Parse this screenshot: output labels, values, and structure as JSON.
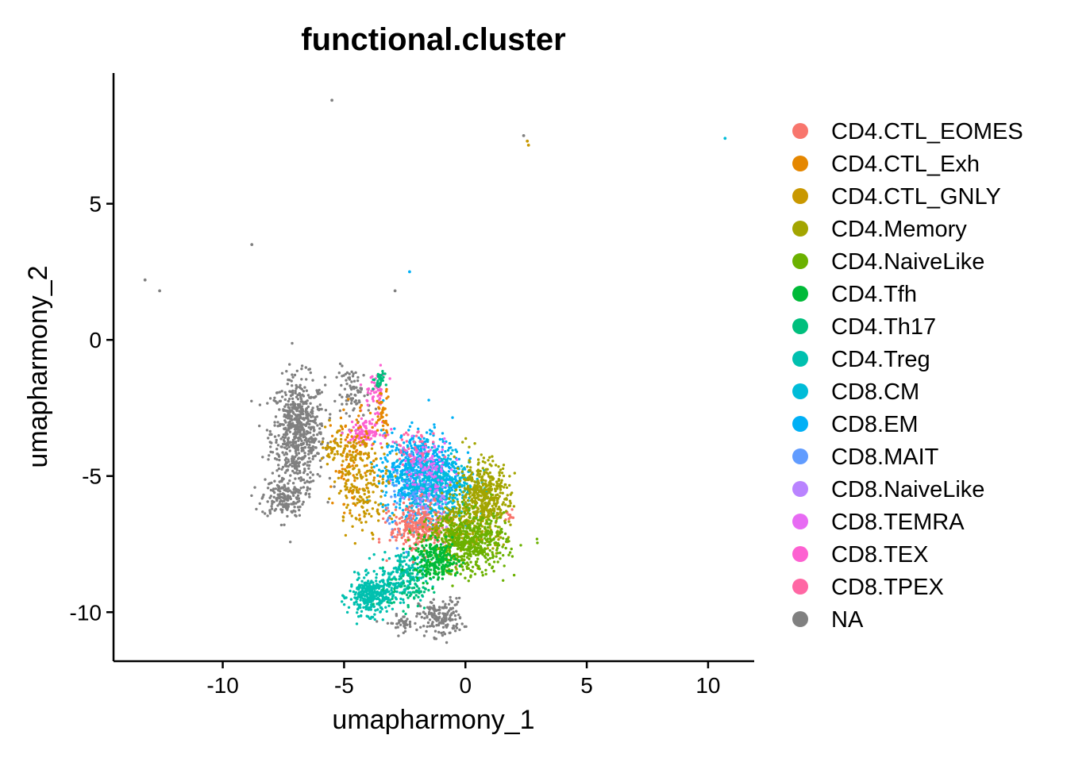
{
  "chart_data": {
    "type": "scatter",
    "title": "functional.cluster",
    "xlabel": "umapharmony_1",
    "ylabel": "umapharmony_2",
    "xlim": [
      -14.5,
      11.9
    ],
    "ylim": [
      -11.8,
      9.8
    ],
    "x_ticks": [
      -10,
      -5,
      0,
      5,
      10
    ],
    "y_ticks": [
      -10,
      -5,
      0,
      5
    ],
    "x_tick_labels": [
      "-10",
      "-5",
      "0",
      "5",
      "10"
    ],
    "y_tick_labels": [
      "-10",
      "-5",
      "0",
      "5"
    ],
    "legend_position": "right",
    "series": [
      {
        "name": "CD4.CTL_EOMES",
        "color": "#F8766D"
      },
      {
        "name": "CD4.CTL_Exh",
        "color": "#E58700"
      },
      {
        "name": "CD4.CTL_GNLY",
        "color": "#C99800"
      },
      {
        "name": "CD4.Memory",
        "color": "#A3A500"
      },
      {
        "name": "CD4.NaiveLike",
        "color": "#6BB100"
      },
      {
        "name": "CD4.Tfh",
        "color": "#00BA38"
      },
      {
        "name": "CD4.Th17",
        "color": "#00BF7D"
      },
      {
        "name": "CD4.Treg",
        "color": "#00C0AF"
      },
      {
        "name": "CD8.CM",
        "color": "#00BCD8"
      },
      {
        "name": "CD8.EM",
        "color": "#00B0F6"
      },
      {
        "name": "CD8.MAIT",
        "color": "#619CFF"
      },
      {
        "name": "CD8.NaiveLike",
        "color": "#B983FF"
      },
      {
        "name": "CD8.TEMRA",
        "color": "#E76BF3"
      },
      {
        "name": "CD8.TEX",
        "color": "#FD61D1"
      },
      {
        "name": "CD8.TPEX",
        "color": "#FF67A4"
      },
      {
        "name": "NA",
        "color": "#808080"
      }
    ],
    "regions": [
      {
        "series": "NA",
        "cx": -6.9,
        "cy": -3.4,
        "sx": 0.55,
        "sy": 1.0,
        "n": 650
      },
      {
        "series": "NA",
        "cx": -7.5,
        "cy": -5.8,
        "sx": 0.45,
        "sy": 0.35,
        "n": 160
      },
      {
        "series": "NA",
        "cx": -1.0,
        "cy": -10.2,
        "sx": 0.45,
        "sy": 0.35,
        "n": 160
      },
      {
        "series": "NA",
        "cx": -2.6,
        "cy": -10.4,
        "sx": 0.35,
        "sy": 0.15,
        "n": 40
      },
      {
        "series": "NA",
        "cx": -4.6,
        "cy": -2.0,
        "sx": 0.35,
        "sy": 0.5,
        "n": 80
      },
      {
        "series": "CD4.Treg",
        "cx": -3.9,
        "cy": -9.4,
        "sx": 0.45,
        "sy": 0.35,
        "n": 320
      },
      {
        "series": "CD4.Treg",
        "cx": -2.6,
        "cy": -8.6,
        "sx": 0.45,
        "sy": 0.45,
        "n": 180
      },
      {
        "series": "CD4.Th17",
        "cx": -2.3,
        "cy": -9.1,
        "sx": 0.45,
        "sy": 0.4,
        "n": 70
      },
      {
        "series": "CD8.EM",
        "cx": -1.8,
        "cy": -4.9,
        "sx": 0.8,
        "sy": 0.75,
        "n": 800
      },
      {
        "series": "CD8.CM",
        "cx": -1.2,
        "cy": -5.4,
        "sx": 0.8,
        "sy": 0.7,
        "n": 320
      },
      {
        "series": "CD8.MAIT",
        "cx": -2.0,
        "cy": -6.0,
        "sx": 0.6,
        "sy": 0.7,
        "n": 70
      },
      {
        "series": "CD8.NaiveLike",
        "cx": -1.5,
        "cy": -6.3,
        "sx": 0.6,
        "sy": 0.6,
        "n": 60
      },
      {
        "series": "CD8.TEMRA",
        "cx": -1.6,
        "cy": -4.6,
        "sx": 0.55,
        "sy": 0.5,
        "n": 90
      },
      {
        "series": "CD8.TEX",
        "cx": -4.1,
        "cy": -3.4,
        "sx": 0.35,
        "sy": 0.2,
        "n": 110
      },
      {
        "series": "CD8.TEX",
        "cx": -3.7,
        "cy": -1.9,
        "sx": 0.25,
        "sy": 0.35,
        "n": 50
      },
      {
        "series": "CD8.TPEX",
        "cx": -2.2,
        "cy": -4.0,
        "sx": 0.5,
        "sy": 0.4,
        "n": 40
      },
      {
        "series": "CD4.CTL_EOMES",
        "cx": -1.9,
        "cy": -6.9,
        "sx": 0.6,
        "sy": 0.45,
        "n": 280
      },
      {
        "series": "CD4.CTL_EOMES",
        "cx": 1.8,
        "cy": -6.5,
        "sx": 0.1,
        "sy": 0.15,
        "n": 10
      },
      {
        "series": "CD4.CTL_Exh",
        "cx": -4.6,
        "cy": -4.4,
        "sx": 0.45,
        "sy": 0.9,
        "n": 120
      },
      {
        "series": "CD4.CTL_Exh",
        "cx": -3.4,
        "cy": -2.6,
        "sx": 0.15,
        "sy": 0.4,
        "n": 40
      },
      {
        "series": "CD4.CTL_GNLY",
        "cx": -4.2,
        "cy": -5.3,
        "sx": 0.55,
        "sy": 0.8,
        "n": 180
      },
      {
        "series": "CD4.CTL_GNLY",
        "cx": -5.3,
        "cy": -3.9,
        "sx": 0.35,
        "sy": 0.4,
        "n": 50
      },
      {
        "series": "CD4.Memory",
        "cx": 0.7,
        "cy": -5.9,
        "sx": 0.55,
        "sy": 0.75,
        "n": 520
      },
      {
        "series": "CD4.Memory",
        "cx": -0.4,
        "cy": -6.9,
        "sx": 0.5,
        "sy": 0.45,
        "n": 150
      },
      {
        "series": "CD4.NaiveLike",
        "cx": 0.1,
        "cy": -7.5,
        "sx": 0.8,
        "sy": 0.55,
        "n": 540
      },
      {
        "series": "CD4.Tfh",
        "cx": -1.2,
        "cy": -8.1,
        "sx": 0.45,
        "sy": 0.35,
        "n": 230
      },
      {
        "series": "CD4.Th17",
        "cx": -3.6,
        "cy": -1.5,
        "sx": 0.15,
        "sy": 0.15,
        "n": 30
      }
    ],
    "outliers": [
      {
        "series": "NA",
        "x": -5.5,
        "y": 8.8
      },
      {
        "series": "NA",
        "x": -8.8,
        "y": 3.5
      },
      {
        "series": "NA",
        "x": -13.2,
        "y": 2.2
      },
      {
        "series": "NA",
        "x": -12.6,
        "y": 1.8
      },
      {
        "series": "NA",
        "x": -2.9,
        "y": 1.8
      },
      {
        "series": "NA",
        "x": 2.4,
        "y": 7.5
      },
      {
        "series": "CD4.CTL_GNLY",
        "x": 2.55,
        "y": 7.3
      },
      {
        "series": "CD4.CTL_GNLY",
        "x": 2.6,
        "y": 7.15
      },
      {
        "series": "CD8.CM",
        "x": 10.7,
        "y": 7.4
      },
      {
        "series": "CD8.EM",
        "x": -2.3,
        "y": 2.5
      }
    ]
  }
}
